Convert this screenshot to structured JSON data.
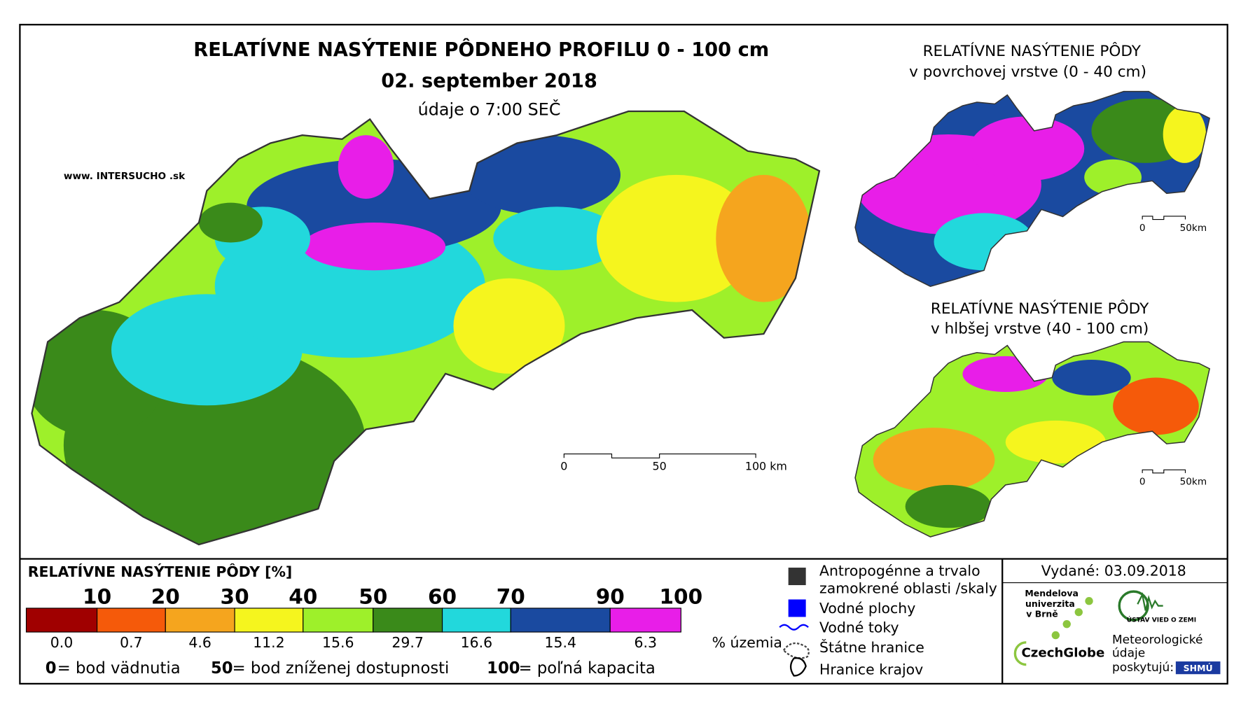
{
  "header": {
    "title": "RELATÍVNE NASÝTENIE PÔDNEHO PROFILU 0 - 100 cm",
    "date": "02. september 2018",
    "time": "údaje o 7:00 SEČ",
    "website": "www. INTERSUCHO .sk"
  },
  "main_map": {
    "scale": [
      "0",
      "50",
      "100 km"
    ]
  },
  "inset_top": {
    "title": [
      "RELATÍVNE NASÝTENIE PÔDY",
      "v povrchovej vrstve (0 - 40 cm)"
    ],
    "scale": [
      "0",
      "50km"
    ]
  },
  "inset_bottom": {
    "title": [
      "RELATÍVNE NASÝTENIE PÔDY",
      "v hlbšej vrstve (40 - 100 cm)"
    ],
    "scale": [
      "0",
      "50km"
    ]
  },
  "legend": {
    "title": "RELATÍVNE NASÝTENIE PÔDY [%]",
    "boundaries": [
      "10",
      "20",
      "30",
      "40",
      "50",
      "60",
      "70",
      "90",
      "100"
    ],
    "items": [
      {
        "color": "#a00000",
        "share": "0.0"
      },
      {
        "color": "#f55a0a",
        "share": "0.7"
      },
      {
        "color": "#f5a51e",
        "share": "4.6"
      },
      {
        "color": "#f5f51e",
        "share": "11.2"
      },
      {
        "color": "#9ef02a",
        "share": "15.6"
      },
      {
        "color": "#3a8a1a",
        "share": "29.7"
      },
      {
        "color": "#22d8dc",
        "share": "16.6"
      },
      {
        "color": "#1a4aa0",
        "share": "15.4"
      },
      {
        "color": "#e81ee8",
        "share": "6.3"
      }
    ],
    "unit": "% územia",
    "notes": [
      {
        "key": "0",
        "text": "= bod vädnutia"
      },
      {
        "key": "50",
        "text": "= bod zníženej dostupnosti"
      },
      {
        "key": "100",
        "text": "= poľná kapacita"
      }
    ],
    "symbols": [
      "Antropogénne a trvalo",
      "zamokrené oblasti /skaly",
      "Vodné plochy",
      "Vodné toky",
      "Štátne hranice",
      "Hranice krajov"
    ]
  },
  "credits": {
    "issued": "Vydané: 03.09.2018",
    "mendel": [
      "Mendelova",
      "univerzita",
      "v Brně"
    ],
    "czechglobe": "CzechGlobe",
    "uvz": "ÚSTAV VIED O ZEMI",
    "meteo": [
      "Meteorologické",
      "údaje",
      "poskytujú:"
    ],
    "shmu": "SHMÚ"
  }
}
